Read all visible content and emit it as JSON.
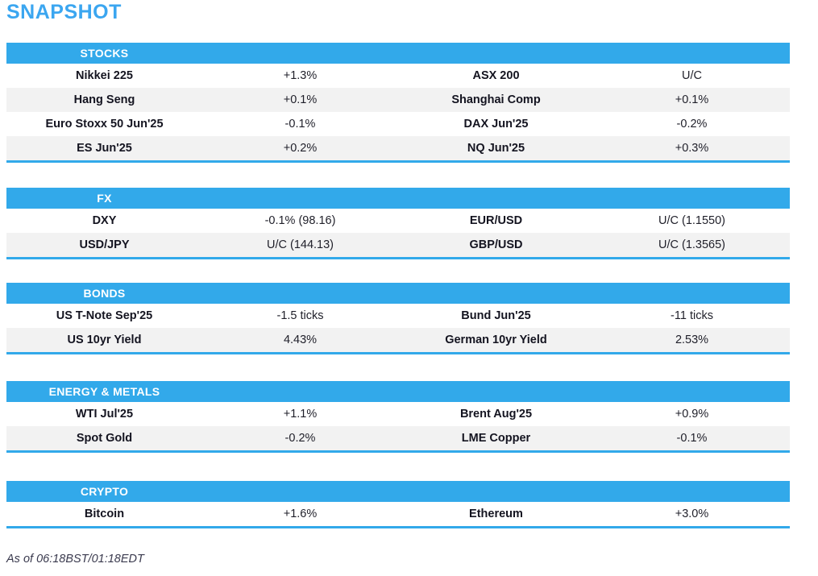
{
  "page": {
    "title": "SNAPSHOT",
    "footer": "As of 06:18BST/01:18EDT"
  },
  "colors": {
    "accent_blue": "#32a9ea",
    "title_blue": "#3ba6f0",
    "row_alt_gray": "#f2f2f2",
    "text_dark": "#19191f"
  },
  "sections": [
    {
      "title": "STOCKS",
      "rows": [
        {
          "label1": "Nikkei 225",
          "value1": "+1.3%",
          "label2": "ASX 200",
          "value2": "U/C"
        },
        {
          "label1": "Hang Seng",
          "value1": "+0.1%",
          "label2": "Shanghai Comp",
          "value2": "+0.1%"
        },
        {
          "label1": "Euro Stoxx 50 Jun'25",
          "value1": "-0.1%",
          "label2": "DAX Jun'25",
          "value2": "-0.2%"
        },
        {
          "label1": "ES Jun'25",
          "value1": "+0.2%",
          "label2": "NQ Jun'25",
          "value2": "+0.3%"
        }
      ]
    },
    {
      "title": "FX",
      "rows": [
        {
          "label1": "DXY",
          "value1": "-0.1% (98.16)",
          "label2": "EUR/USD",
          "value2": "U/C (1.1550)"
        },
        {
          "label1": "USD/JPY",
          "value1": "U/C (144.13)",
          "label2": "GBP/USD",
          "value2": "U/C (1.3565)"
        }
      ]
    },
    {
      "title": "BONDS",
      "rows": [
        {
          "label1": "US T-Note Sep'25",
          "value1": "-1.5 ticks",
          "label2": "Bund Jun'25",
          "value2": "-11 ticks"
        },
        {
          "label1": "US 10yr Yield",
          "value1": "4.43%",
          "label2": "German 10yr Yield",
          "value2": "2.53%"
        }
      ]
    },
    {
      "title": "ENERGY & METALS",
      "rows": [
        {
          "label1": "WTI Jul'25",
          "value1": "+1.1%",
          "label2": "Brent Aug'25",
          "value2": "+0.9%"
        },
        {
          "label1": "Spot Gold",
          "value1": "-0.2%",
          "label2": "LME Copper",
          "value2": "-0.1%"
        }
      ]
    },
    {
      "title": "CRYPTO",
      "rows": [
        {
          "label1": "Bitcoin",
          "value1": "+1.6%",
          "label2": "Ethereum",
          "value2": "+3.0%"
        }
      ]
    }
  ]
}
